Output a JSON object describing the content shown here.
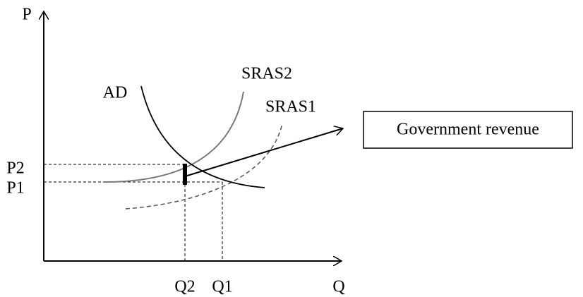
{
  "axes": {
    "y_label": "P",
    "x_label": "Q"
  },
  "curves": {
    "ad": "AD",
    "sras2": "SRAS2",
    "sras1": "SRAS1"
  },
  "prices": {
    "p2": "P2",
    "p1": "P1"
  },
  "quantities": {
    "q2": "Q2",
    "q1": "Q1"
  },
  "callout": "Government revenue"
}
